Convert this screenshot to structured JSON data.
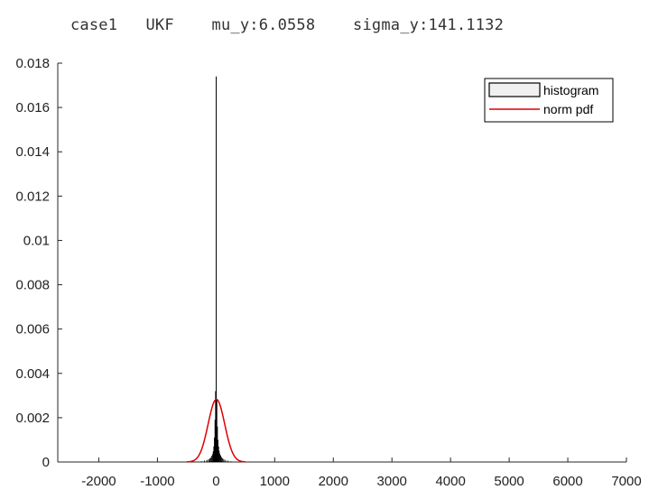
{
  "chart_data": {
    "type": "bar",
    "title": "case1   UKF    mu_y:6.0558    sigma_y:141.1132",
    "xlabel": "",
    "ylabel": "",
    "xlim": [
      -2700,
      7000
    ],
    "ylim": [
      0,
      0.018
    ],
    "xticks": [
      -2000,
      -1000,
      0,
      1000,
      2000,
      3000,
      4000,
      5000,
      6000,
      7000
    ],
    "xtick_labels": [
      "-2000",
      "-1000",
      "0",
      "1000",
      "2000",
      "3000",
      "4000",
      "5000",
      "6000",
      "7000"
    ],
    "yticks": [
      0,
      0.002,
      0.004,
      0.006,
      0.008,
      0.01,
      0.012,
      0.014,
      0.016,
      0.018
    ],
    "ytick_labels": [
      "0",
      "0.002",
      "0.004",
      "0.006",
      "0.008",
      "0.01",
      "0.012",
      "0.014",
      "0.016",
      "0.018"
    ],
    "grid": false,
    "legend_position": "top-right",
    "series": [
      {
        "name": "histogram",
        "kind": "histogram",
        "bin_width": 10,
        "bin_centers": [
          -250,
          -200,
          -160,
          -130,
          -110,
          -90,
          -75,
          -60,
          -50,
          -40,
          -30,
          -20,
          -10,
          0,
          10,
          20,
          30,
          40,
          50,
          60,
          75,
          90,
          110,
          130,
          160,
          200,
          250
        ],
        "values": [
          3e-05,
          6e-05,
          9e-05,
          0.00012,
          0.00016,
          0.0002,
          0.00028,
          0.00036,
          0.00048,
          0.0007,
          0.0011,
          0.0019,
          0.0032,
          0.0174,
          0.0028,
          0.0016,
          0.001,
          0.0007,
          0.0005,
          0.00038,
          0.0003,
          0.00022,
          0.00017,
          0.00012,
          9e-05,
          6e-05,
          3e-05
        ],
        "color": "#000000",
        "legend_fill": "#f0f0f0"
      },
      {
        "name": "norm pdf",
        "kind": "line",
        "mu": 6.0558,
        "sigma": 141.1132,
        "x_range": [
          -500,
          500
        ],
        "color": "#dd0000"
      }
    ]
  }
}
